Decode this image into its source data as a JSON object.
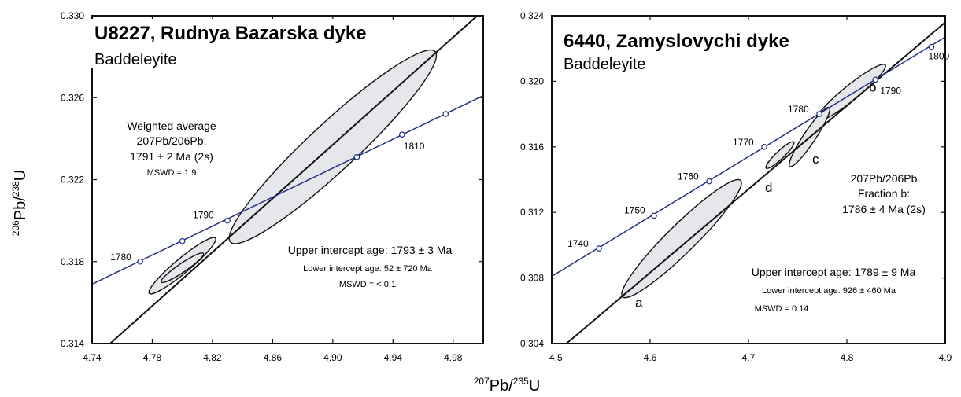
{
  "axes": {
    "ylabel_main": "Pb/",
    "ylabel_sup1": "206",
    "ylabel_sup2": "238",
    "ylabel_tail": "U",
    "xlabel_main": "Pb/",
    "xlabel_sup1": "207",
    "xlabel_sup2": "235",
    "xlabel_tail": "U"
  },
  "chart_data": [
    {
      "type": "scatter",
      "title": "U8227, Rudnya Bazarska dyke",
      "subtitle": "Baddeleyite",
      "xlim": [
        4.74,
        5.0
      ],
      "ylim": [
        0.314,
        0.33
      ],
      "x_ticks": [
        "4.74",
        "4.78",
        "4.82",
        "4.86",
        "4.90",
        "4.94",
        "4.98"
      ],
      "y_ticks": [
        "0.314",
        "0.318",
        "0.322",
        "0.326",
        "0.330"
      ],
      "concordia_points": [
        {
          "age": "1780",
          "x": 4.772,
          "y": 0.318
        },
        {
          "age": "",
          "x": 4.8,
          "y": 0.319
        },
        {
          "age": "1790",
          "x": 4.83,
          "y": 0.32
        },
        {
          "age": "",
          "x": 4.916,
          "y": 0.3231
        },
        {
          "age": "1810",
          "x": 4.946,
          "y": 0.3242
        },
        {
          "age": "",
          "x": 4.975,
          "y": 0.3252
        }
      ],
      "concordia_range": {
        "x": [
          4.74,
          5.0
        ],
        "y": [
          0.3169,
          0.3261
        ]
      },
      "discordia_line": {
        "x": [
          4.752,
          4.996
        ],
        "y": [
          0.314,
          0.33
        ]
      },
      "ellipses": [
        {
          "center": [
            4.8,
            0.3178
          ],
          "x_span": [
            4.778,
            4.822
          ],
          "y_span": [
            0.3165,
            0.3192
          ]
        },
        {
          "center": [
            4.8,
            0.3177
          ],
          "x_span": [
            4.786,
            4.814
          ],
          "y_span": [
            0.317,
            0.3184
          ]
        },
        {
          "center": [
            4.9,
            0.3236
          ],
          "x_span": [
            4.832,
            4.968
          ],
          "y_span": [
            0.319,
            0.3283
          ]
        }
      ],
      "annotations": [
        "Weighted average",
        "207Pb/206Pb:",
        "1791 ± 2 Ma (2s)",
        "MSWD = 1.9",
        "Upper intercept age: 1793 ± 3 Ma",
        "Lower intercept age:  52 ± 720 Ma",
        "MSWD = < 0.1"
      ]
    },
    {
      "type": "scatter",
      "title": "6440, Zamyslovychi dyke",
      "subtitle": "Baddeleyite",
      "xlim": [
        4.5,
        4.9
      ],
      "ylim": [
        0.304,
        0.324
      ],
      "x_ticks": [
        "4.5",
        "4.6",
        "4.7",
        "4.8",
        "4.9"
      ],
      "y_ticks": [
        "0.304",
        "0.308",
        "0.312",
        "0.316",
        "0.320",
        "0.324"
      ],
      "concordia_points": [
        {
          "age": "1740",
          "x": 4.548,
          "y": 0.3098
        },
        {
          "age": "1750",
          "x": 4.604,
          "y": 0.3118
        },
        {
          "age": "1760",
          "x": 4.66,
          "y": 0.3139
        },
        {
          "age": "1770",
          "x": 4.716,
          "y": 0.316
        },
        {
          "age": "1780",
          "x": 4.772,
          "y": 0.318
        },
        {
          "age": "1790",
          "x": 4.829,
          "y": 0.3201
        },
        {
          "age": "1800",
          "x": 4.886,
          "y": 0.3221
        }
      ],
      "concordia_range": {
        "x": [
          4.5,
          4.9
        ],
        "y": [
          0.3081,
          0.3227
        ]
      },
      "discordia_line": {
        "x": [
          4.515,
          4.9
        ],
        "y": [
          0.304,
          0.3236
        ]
      },
      "ellipses": [
        {
          "label": "a",
          "center": [
            4.632,
            0.3104
          ],
          "x_span": [
            4.572,
            4.692
          ],
          "y_span": [
            0.3069,
            0.314
          ]
        },
        {
          "label": "b",
          "center": [
            4.804,
            0.3193
          ],
          "x_span": [
            4.77,
            4.84
          ],
          "y_span": [
            0.3176,
            0.321
          ]
        },
        {
          "label": "c",
          "center": [
            4.762,
            0.3166
          ],
          "x_span": [
            4.744,
            4.784
          ],
          "y_span": [
            0.3148,
            0.3184
          ]
        },
        {
          "label": "d",
          "center": [
            4.732,
            0.3155
          ],
          "x_span": [
            4.72,
            4.748
          ],
          "y_span": [
            0.3147,
            0.3163
          ]
        }
      ],
      "annotations": [
        "207Pb/206Pb",
        "Fraction b:",
        "1786 ± 4 Ma (2s)",
        "Upper intercept age: 1789 ± 9 Ma",
        "Lower intercept age: 926 ± 460 Ma",
        "MSWD = 0.14"
      ]
    }
  ]
}
